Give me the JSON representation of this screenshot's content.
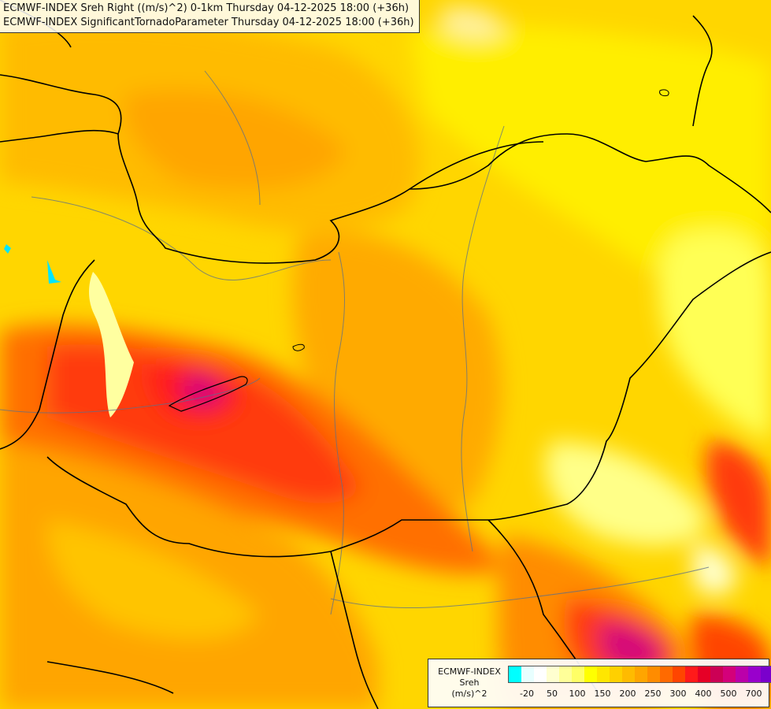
{
  "header": {
    "line1": "ECMWF-INDEX Sreh Right ((m/s)^2) 0-1km Thursday 04-12-2025 18:00 (+36h)",
    "line2": "ECMWF-INDEX SignificantTornadoParameter Thursday 04-12-2025 18:00 (+36h)"
  },
  "legend": {
    "model": "ECMWF-INDEX",
    "variable": "Sreh",
    "unit": "(m/s)^2",
    "colors": [
      "#00ffff",
      "#e8ffff",
      "#ffffff",
      "#ffffd0",
      "#ffff99",
      "#ffff66",
      "#ffff00",
      "#ffe600",
      "#ffd000",
      "#ffbb00",
      "#ffa500",
      "#ff8c00",
      "#ff6a00",
      "#ff4500",
      "#ff1a1a",
      "#e60026",
      "#cc0055",
      "#d4007a",
      "#bb00aa",
      "#9900cc",
      "#7a00cc",
      "#5500aa",
      "#330099",
      "#110066"
    ],
    "ticks": [
      {
        "label": "-20",
        "pos": 1.5
      },
      {
        "label": "50",
        "pos": 3.5
      },
      {
        "label": "100",
        "pos": 5.5
      },
      {
        "label": "150",
        "pos": 7.5
      },
      {
        "label": "200",
        "pos": 9.5
      },
      {
        "label": "250",
        "pos": 11.5
      },
      {
        "label": "300",
        "pos": 13.5
      },
      {
        "label": "400",
        "pos": 15.5
      },
      {
        "label": "500",
        "pos": 17.5
      },
      {
        "label": "700",
        "pos": 19.5
      }
    ]
  }
}
